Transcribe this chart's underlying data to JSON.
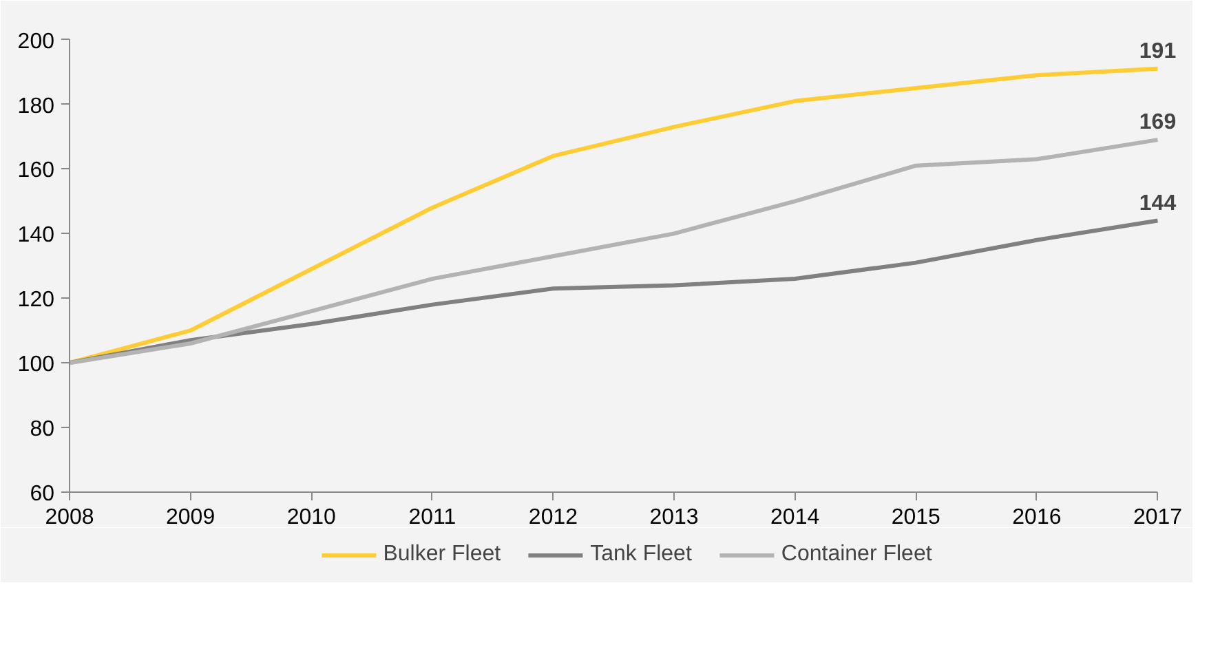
{
  "chart_data": {
    "type": "line",
    "x": [
      2008,
      2009,
      2010,
      2011,
      2012,
      2013,
      2014,
      2015,
      2016,
      2017
    ],
    "series": [
      {
        "name": "Bulker Fleet",
        "color": "#ffcc33",
        "values": [
          100,
          110,
          129,
          148,
          164,
          173,
          181,
          185,
          189,
          191
        ],
        "value_labels": [
          null,
          null,
          null,
          null,
          null,
          null,
          null,
          null,
          null,
          "191"
        ]
      },
      {
        "name": "Tank Fleet",
        "color": "#808080",
        "values": [
          100,
          107,
          112,
          118,
          123,
          124,
          126,
          131,
          138,
          144
        ],
        "value_labels": [
          null,
          null,
          null,
          null,
          null,
          null,
          null,
          null,
          null,
          "144"
        ]
      },
      {
        "name": "Container Fleet",
        "color": "#b3b3b3",
        "values": [
          100,
          106,
          116,
          126,
          133,
          140,
          150,
          161,
          163,
          169
        ],
        "value_labels": [
          null,
          null,
          null,
          null,
          null,
          null,
          null,
          null,
          null,
          "169"
        ]
      }
    ],
    "xlim": [
      2008,
      2017
    ],
    "xticks": [
      2008,
      2009,
      2010,
      2011,
      2012,
      2013,
      2014,
      2015,
      2016,
      2017
    ],
    "ylim": [
      60,
      200
    ],
    "yticks": [
      60,
      80,
      100,
      120,
      140,
      160,
      180,
      200
    ],
    "grid": false,
    "legend": "bottom",
    "line_style": "solid",
    "marker": "none"
  }
}
